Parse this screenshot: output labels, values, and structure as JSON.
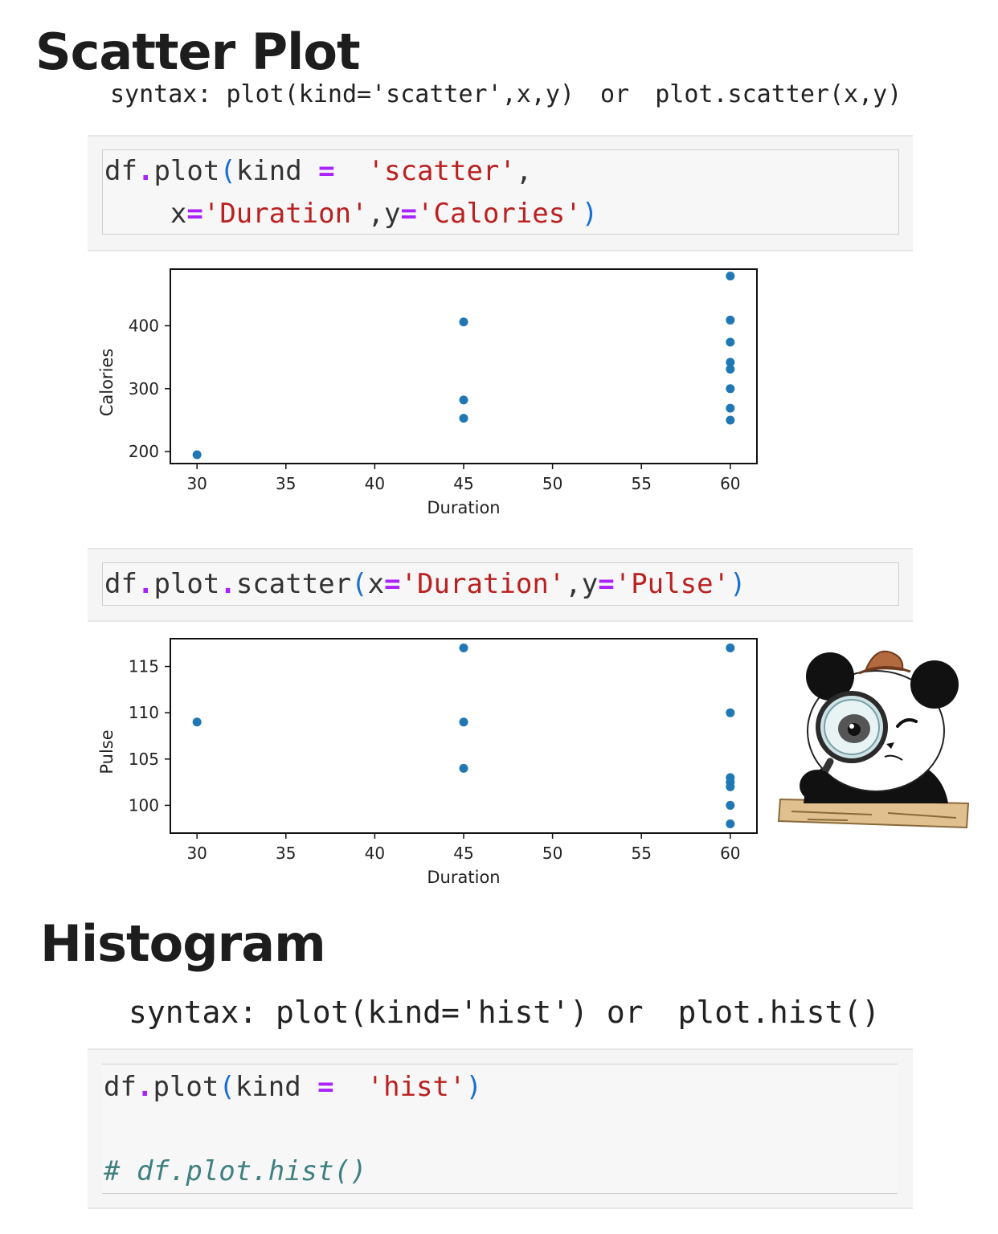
{
  "scatter_section": {
    "title": "Scatter Plot",
    "syntax": {
      "prefix": "syntax:",
      "form1": "plot(kind='scatter',x,y)",
      "or": "or",
      "form2": "plot.scatter(x,y)"
    }
  },
  "code_cell_1": {
    "line1": {
      "a": "df",
      "dot": ".",
      "b": "plot",
      "open": "(",
      "c": "kind ",
      "eq": "=",
      "sp": " ",
      "s": "'scatter'",
      "comma": ","
    },
    "line2": {
      "indent": "    ",
      "x": "x",
      "eq1": "=",
      "s1": "'Duration'",
      "comma": ",",
      "y": "y",
      "eq2": "=",
      "s2": "'Calories'",
      "close": ")"
    }
  },
  "code_cell_2": {
    "a": "df",
    "dot1": ".",
    "b": "plot",
    "dot2": ".",
    "c": "scatter",
    "open": "(",
    "x": "x",
    "eq1": "=",
    "s1": "'Duration'",
    "comma": ",",
    "y": "y",
    "eq2": "=",
    "s2": "'Pulse'",
    "close": ")"
  },
  "histogram_section": {
    "title": "Histogram",
    "syntax": {
      "prefix": "syntax:",
      "form1": "plot(kind='hist')",
      "or": "or",
      "form2": "plot.hist()"
    }
  },
  "code_cell_3": {
    "line1": {
      "a": "df",
      "dot": ".",
      "b": "plot",
      "open": "(",
      "c": "kind ",
      "eq": "=",
      "sp": " ",
      "s": "'hist'",
      "close": ")"
    },
    "comment": "# df.plot.hist()"
  },
  "chart_data": [
    {
      "type": "scatter",
      "xlabel": "Duration",
      "ylabel": "Calories",
      "xlim": [
        28.5,
        61.5
      ],
      "ylim": [
        181,
        490
      ],
      "xticks": [
        30,
        35,
        40,
        45,
        50,
        55,
        60
      ],
      "yticks": [
        200,
        300,
        400
      ],
      "color": "#1f77b4",
      "points": [
        [
          30,
          195
        ],
        [
          45,
          406
        ],
        [
          45,
          282
        ],
        [
          45,
          253
        ],
        [
          60,
          479
        ],
        [
          60,
          409
        ],
        [
          60,
          374
        ],
        [
          60,
          342
        ],
        [
          60,
          331
        ],
        [
          60,
          300
        ],
        [
          60,
          269
        ],
        [
          60,
          250
        ]
      ]
    },
    {
      "type": "scatter",
      "xlabel": "Duration",
      "ylabel": "Pulse",
      "xlim": [
        28.5,
        61.5
      ],
      "ylim": [
        97,
        118
      ],
      "xticks": [
        30,
        35,
        40,
        45,
        50,
        55,
        60
      ],
      "yticks": [
        100,
        105,
        110,
        115
      ],
      "color": "#1f77b4",
      "points": [
        [
          30,
          109
        ],
        [
          45,
          117
        ],
        [
          45,
          109
        ],
        [
          45,
          104
        ],
        [
          60,
          117
        ],
        [
          60,
          110
        ],
        [
          60,
          103
        ],
        [
          60,
          102.5
        ],
        [
          60,
          102
        ],
        [
          60,
          100
        ],
        [
          60,
          98
        ]
      ]
    }
  ]
}
